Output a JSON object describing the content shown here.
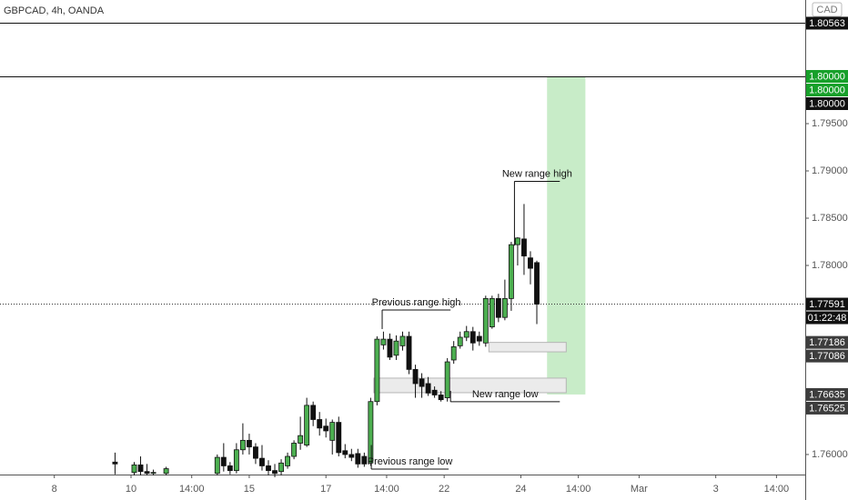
{
  "chart_data": {
    "type": "candlestick",
    "title": "GBPCAD, 4h, OANDA",
    "currency": "CAD",
    "x": [
      18,
      21,
      22,
      23,
      24,
      26,
      34,
      35,
      36,
      37,
      38,
      39,
      40,
      41,
      42,
      43,
      44,
      45,
      46,
      47,
      48,
      49,
      50,
      51,
      52,
      53,
      54,
      55,
      56,
      57,
      58,
      59,
      60,
      61,
      62,
      63,
      64,
      65,
      66,
      67,
      68,
      69,
      70,
      71,
      72,
      73,
      74,
      75,
      76,
      77,
      78,
      79,
      80,
      81,
      82,
      83,
      84
    ],
    "open": [
      1.7592,
      1.7581,
      1.7589,
      1.7582,
      1.758,
      1.758,
      1.758,
      1.7597,
      1.7588,
      1.7583,
      1.7605,
      1.7615,
      1.7608,
      1.7596,
      1.7588,
      1.7583,
      1.7582,
      1.7588,
      1.7598,
      1.7612,
      1.761,
      1.7652,
      1.7637,
      1.763,
      1.7615,
      1.7634,
      1.7604,
      1.76,
      1.7601,
      1.7598,
      1.7591,
      1.7656,
      1.7716,
      1.7722,
      1.7705,
      1.7715,
      1.7725,
      1.769,
      1.768,
      1.7675,
      1.7668,
      1.7663,
      1.766,
      1.77,
      1.7715,
      1.7724,
      1.773,
      1.7725,
      1.7718,
      1.7735,
      1.7765,
      1.7745,
      1.7765,
      1.7822,
      1.7828,
      1.7808,
      1.7803
    ],
    "high": [
      1.7602,
      1.7592,
      1.7598,
      1.759,
      1.7584,
      1.7587,
      1.76,
      1.7612,
      1.7592,
      1.7612,
      1.7633,
      1.7622,
      1.7612,
      1.761,
      1.7594,
      1.759,
      1.7595,
      1.7602,
      1.7615,
      1.764,
      1.766,
      1.7656,
      1.7645,
      1.7638,
      1.7637,
      1.764,
      1.7611,
      1.7606,
      1.7606,
      1.7602,
      1.766,
      1.7725,
      1.773,
      1.7728,
      1.7726,
      1.773,
      1.773,
      1.7695,
      1.7686,
      1.7682,
      1.7672,
      1.7667,
      1.7702,
      1.772,
      1.773,
      1.7736,
      1.7735,
      1.773,
      1.7768,
      1.7768,
      1.777,
      1.7785,
      1.7825,
      1.783,
      1.7865,
      1.7815,
      1.7805
    ],
    "low": [
      1.7579,
      1.7578,
      1.7578,
      1.7578,
      1.7578,
      1.7578,
      1.7578,
      1.7582,
      1.7579,
      1.758,
      1.76,
      1.76,
      1.759,
      1.7583,
      1.7578,
      1.7576,
      1.7578,
      1.7585,
      1.7595,
      1.7605,
      1.7608,
      1.763,
      1.762,
      1.7618,
      1.76,
      1.7598,
      1.7596,
      1.7593,
      1.7586,
      1.7587,
      1.7588,
      1.7652,
      1.7711,
      1.77,
      1.77,
      1.771,
      1.7685,
      1.766,
      1.766,
      1.7662,
      1.766,
      1.7656,
      1.7656,
      1.7696,
      1.7712,
      1.772,
      1.771,
      1.7715,
      1.7714,
      1.7733,
      1.774,
      1.7742,
      1.7752,
      1.78,
      1.779,
      1.778,
      1.7738
    ],
    "close": [
      1.759,
      1.7589,
      1.7582,
      1.758,
      1.7581,
      1.7585,
      1.7597,
      1.7588,
      1.7583,
      1.7605,
      1.7615,
      1.7608,
      1.7596,
      1.7588,
      1.7583,
      1.758,
      1.7591,
      1.7598,
      1.7612,
      1.762,
      1.7652,
      1.7637,
      1.7628,
      1.7625,
      1.7634,
      1.7602,
      1.76,
      1.7597,
      1.759,
      1.759,
      1.7656,
      1.7722,
      1.7722,
      1.7703,
      1.772,
      1.7725,
      1.769,
      1.7675,
      1.7672,
      1.7665,
      1.7663,
      1.7658,
      1.7698,
      1.7714,
      1.7724,
      1.773,
      1.7718,
      1.772,
      1.7765,
      1.7765,
      1.7745,
      1.7765,
      1.7822,
      1.7829,
      1.781,
      1.7797,
      1.77591
    ],
    "up_color": "#4caf50",
    "down_color": "#111111",
    "xlim": [
      0,
      126
    ],
    "ylim": [
      1.75788,
      1.80808
    ],
    "grid": false,
    "xticks": [
      {
        "value": 8.5,
        "label": "8"
      },
      {
        "value": 20.5,
        "label": "10"
      },
      {
        "value": 30,
        "label": "14:00"
      },
      {
        "value": 39,
        "label": "15"
      },
      {
        "value": 51,
        "label": "17"
      },
      {
        "value": 60.5,
        "label": "14:00"
      },
      {
        "value": 69.5,
        "label": "22"
      },
      {
        "value": 81.5,
        "label": "24"
      },
      {
        "value": 90.5,
        "label": "14:00"
      },
      {
        "value": 100,
        "label": "Mar"
      },
      {
        "value": 112,
        "label": "3"
      },
      {
        "value": 121.5,
        "label": "14:00"
      }
    ],
    "yticks": [
      {
        "value": 1.795,
        "label": "1.79500"
      },
      {
        "value": 1.79,
        "label": "1.79000"
      },
      {
        "value": 1.785,
        "label": "1.78500"
      },
      {
        "value": 1.78,
        "label": "1.78000"
      },
      {
        "value": 1.76,
        "label": "1.76000"
      }
    ],
    "hlines": [
      1.80563,
      1.8
    ],
    "price_labels": [
      {
        "value": 1.80563,
        "label": "1.80563",
        "color": "#111111"
      },
      {
        "value": 1.8,
        "label": "1.80000",
        "color": "#17a02a"
      },
      {
        "value": 1.8,
        "label": "1.80000",
        "color": "#17a02a"
      },
      {
        "value": 1.8,
        "label": "1.80000",
        "color": "#111111"
      },
      {
        "value": 1.77591,
        "label": "1.77591",
        "color": "#111111"
      },
      {
        "value": 1.77186,
        "label": "1.77186",
        "color": "#3d3d3d"
      },
      {
        "value": 1.77086,
        "label": "1.77086",
        "color": "#3d3d3d"
      },
      {
        "value": 1.76635,
        "label": "1.76635",
        "color": "#3d3d3d"
      },
      {
        "value": 1.76525,
        "label": "1.76525",
        "color": "#3d3d3d"
      }
    ],
    "countdown": "01:22:48",
    "target_zone": {
      "x": [
        85.6,
        91.6
      ],
      "y": [
        1.8,
        1.76635
      ],
      "color": "#c8ecc8"
    },
    "zones": [
      {
        "x": [
          76.5,
          88.6
        ],
        "y": [
          1.77186,
          1.77086
        ]
      },
      {
        "x": [
          58.5,
          88.6
        ],
        "y": [
          1.76808,
          1.76654
        ]
      }
    ],
    "annotations": [
      {
        "text": "New range high",
        "x": [
          80.5,
          87.6
        ],
        "y": 1.7889,
        "tip": 1.7821
      },
      {
        "text": "Previous range high",
        "x": [
          59.8,
          70.5
        ],
        "y": 1.77529,
        "tip": 1.77327
      },
      {
        "text": "New range low",
        "x": [
          70.5,
          87.6
        ],
        "y": 1.76558,
        "tip": 1.76673
      },
      {
        "text": "Previous range low",
        "x": [
          58.1,
          70.2
        ],
        "y": 1.75846,
        "tip": 1.761
      }
    ]
  }
}
